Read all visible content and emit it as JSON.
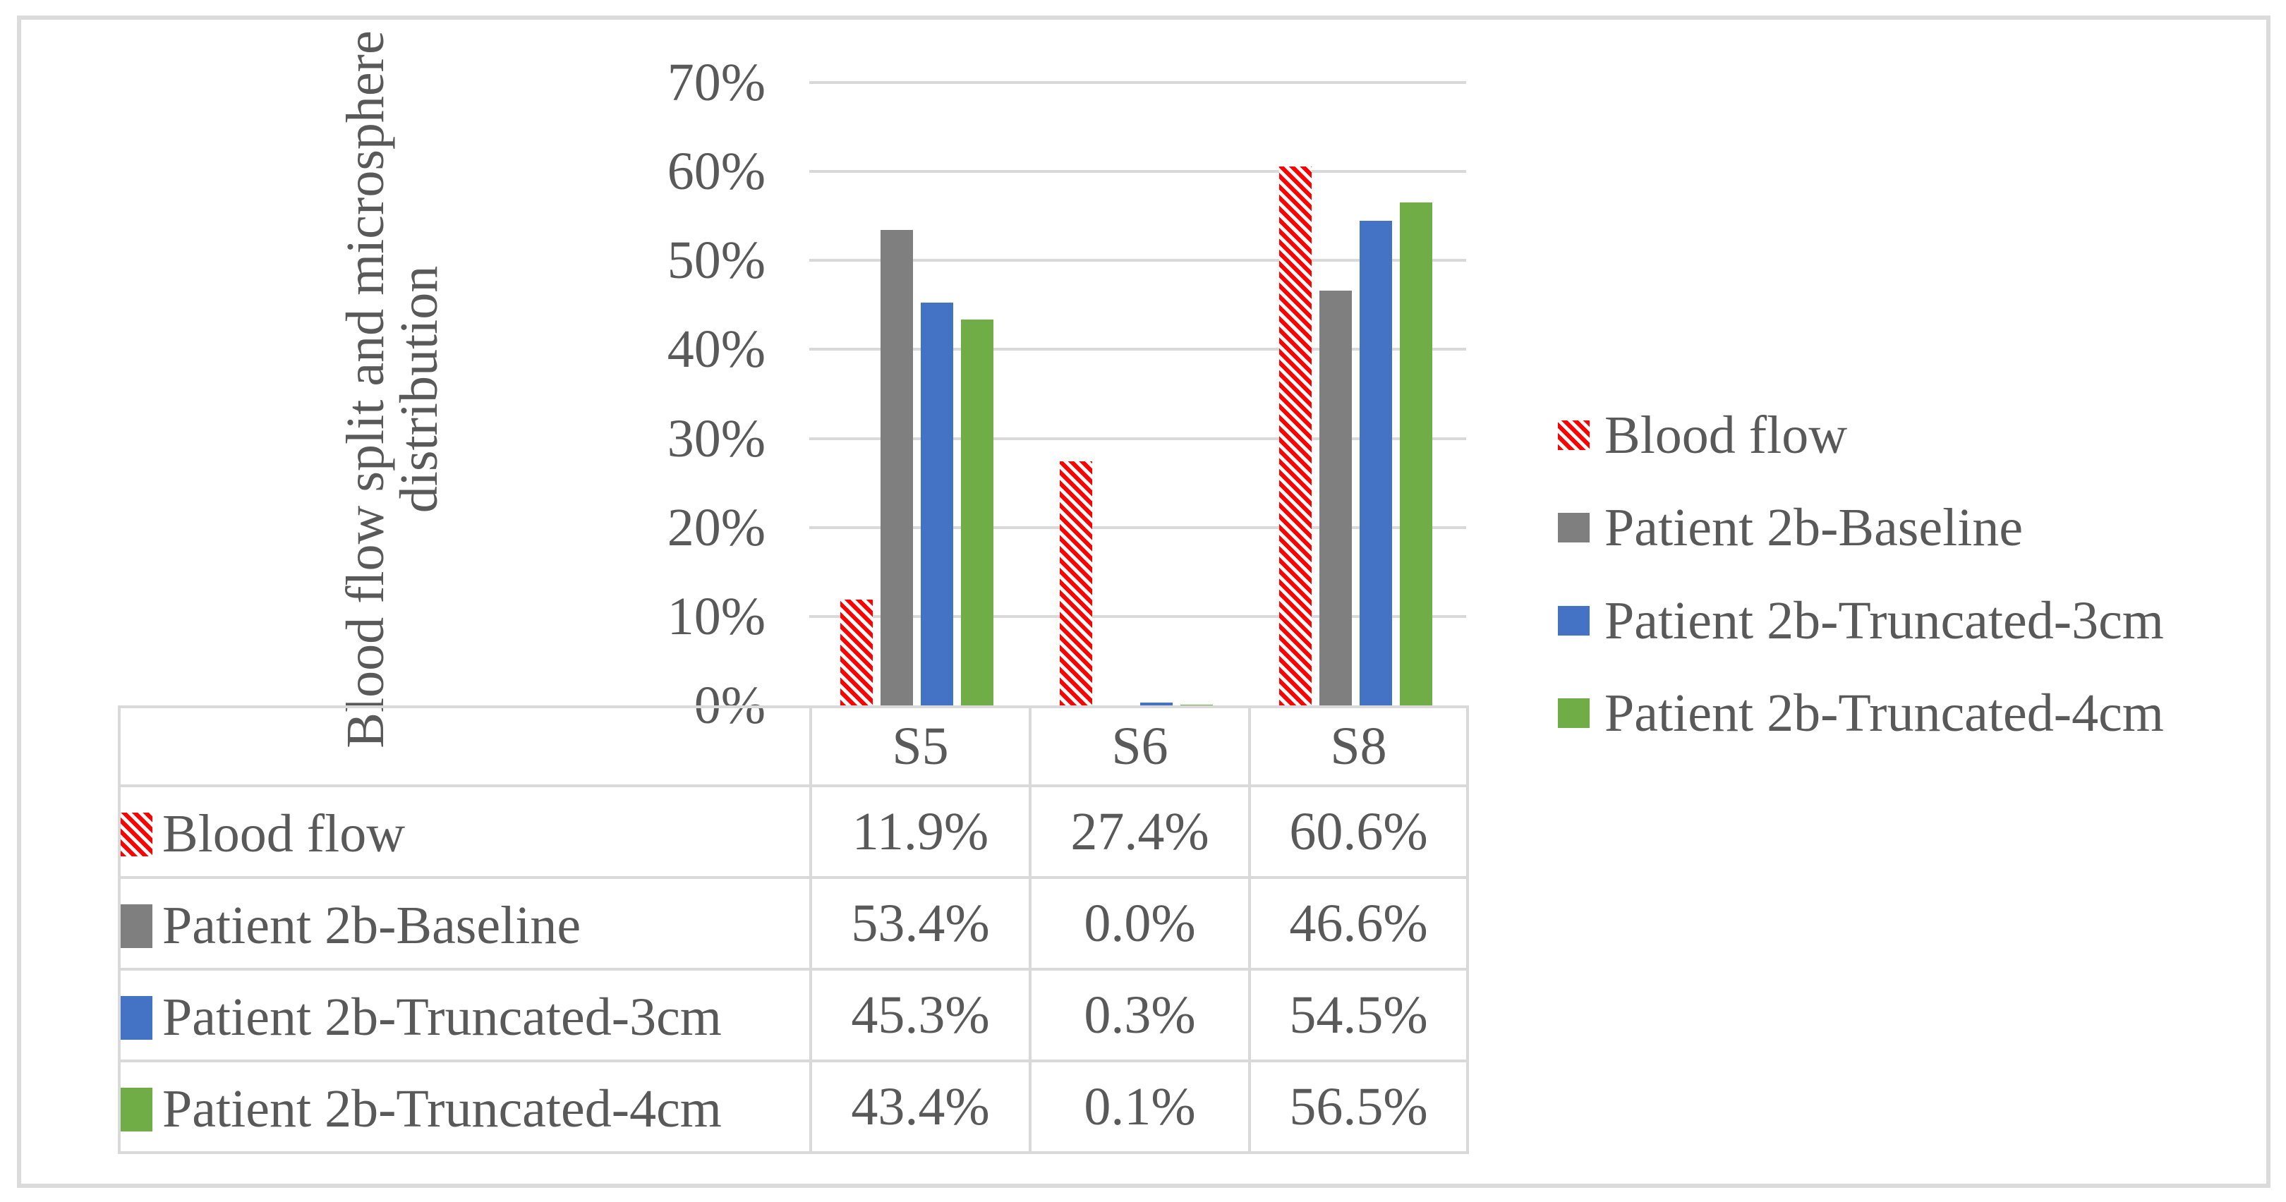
{
  "chart_data": {
    "type": "bar",
    "categories": [
      "S5",
      "S6",
      "S8"
    ],
    "series": [
      {
        "name": "Blood flow",
        "values": [
          11.9,
          27.4,
          60.6
        ],
        "color": "#ff0000",
        "fill": "diagonal-stripe"
      },
      {
        "name": "Patient 2b-Baseline",
        "values": [
          53.4,
          0.0,
          46.6
        ],
        "color": "#7f7f7f",
        "fill": "solid"
      },
      {
        "name": "Patient 2b-Truncated-3cm",
        "values": [
          45.3,
          0.3,
          54.5
        ],
        "color": "#4472c4",
        "fill": "solid"
      },
      {
        "name": "Patient 2b-Truncated-4cm",
        "values": [
          43.4,
          0.1,
          56.5
        ],
        "color": "#70ad47",
        "fill": "solid"
      }
    ],
    "ylabel": "Blood flow split and microsphere distribution",
    "ylabel_lines": [
      "Blood flow split and microsphere",
      "distribution"
    ],
    "ylim": [
      0,
      70
    ],
    "ytick_labels": [
      "0%",
      "10%",
      "20%",
      "30%",
      "40%",
      "50%",
      "60%",
      "70%"
    ],
    "grid": true,
    "legend_position": "right",
    "data_table": {
      "column_headers": [
        "S5",
        "S6",
        "S8"
      ],
      "rows": [
        {
          "label": "Blood flow",
          "values": [
            "11.9%",
            "27.4%",
            "60.6%"
          ]
        },
        {
          "label": "Patient 2b-Baseline",
          "values": [
            "53.4%",
            "0.0%",
            "46.6%"
          ]
        },
        {
          "label": "Patient 2b-Truncated-3cm",
          "values": [
            "45.3%",
            "0.3%",
            "54.5%"
          ]
        },
        {
          "label": "Patient 2b-Truncated-4cm",
          "values": [
            "43.4%",
            "0.1%",
            "56.5%"
          ]
        }
      ]
    }
  },
  "legend": {
    "items": [
      "Blood flow",
      "Patient 2b-Baseline",
      "Patient 2b-Truncated-3cm",
      "Patient 2b-Truncated-4cm"
    ]
  },
  "colors": {
    "grid": "#d9d9d9",
    "border": "#dbdbdb",
    "text": "#595959",
    "stripe_red": "#ff0000",
    "stripe_white": "#ffffff"
  }
}
